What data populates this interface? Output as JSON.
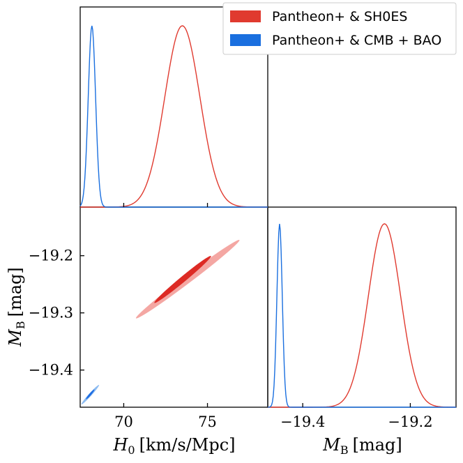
{
  "chart_data": {
    "type": "corner",
    "parameters": [
      {
        "symbol": "H",
        "subscript": "0",
        "unit": "[km/s/Mpc]",
        "range": [
          67.4,
          78.6
        ],
        "ticks": [
          70,
          75
        ],
        "tick_labels": [
          "70",
          "75"
        ]
      },
      {
        "symbol": "M",
        "subscript": "B",
        "unit": "[mag]",
        "range": [
          -19.465,
          -19.115
        ],
        "ticks": [
          -19.4,
          -19.3,
          -19.2
        ],
        "tick_labels": [
          "−19.4",
          "−19.3",
          "−19.2"
        ]
      }
    ],
    "x_range_mb": [
      -19.465,
      -19.115
    ],
    "x_ticks_mb": [
      -19.4,
      -19.2
    ],
    "x_tick_labels_mb": [
      "−19.4",
      "−19.2"
    ],
    "series": [
      {
        "name": "Pantheon+ & SH0ES",
        "color": "#e03a2f",
        "fill_inner": "#dd2a24",
        "fill_outer": "#f4a7a3",
        "H0": {
          "mean": 73.5,
          "sigma": 1.05
        },
        "MB": {
          "mean": -19.248,
          "sigma": 0.03
        },
        "ellipse_1sigma": {
          "corners": [
            [
              71.87,
              -19.288
            ],
            [
              75.25,
              -19.206
            ],
            [
              75.17,
              -19.195
            ],
            [
              71.79,
              -19.277
            ]
          ]
        },
        "ellipse_2sigma": {
          "corners": [
            [
              70.88,
              -19.315
            ],
            [
              77.06,
              -19.178
            ],
            [
              76.76,
              -19.167
            ],
            [
              70.78,
              -19.3
            ]
          ]
        }
      },
      {
        "name": "Pantheon+ & CMB + BAO",
        "color": "#1a6fdf",
        "fill_inner": "#1f6ee3",
        "fill_outer": "#8dbcf1",
        "H0": {
          "mean": 68.1,
          "sigma": 0.22
        },
        "MB": {
          "mean": -19.443,
          "sigma": 0.005
        },
        "ellipse_1sigma": {
          "corners": [
            [
              67.8,
              -19.452
            ],
            [
              68.3,
              -19.435
            ],
            [
              68.2,
              -19.433
            ],
            [
              67.7,
              -19.45
            ]
          ]
        },
        "ellipse_2sigma": {
          "corners": [
            [
              67.55,
              -19.462
            ],
            [
              68.6,
              -19.428
            ],
            [
              68.45,
              -19.424
            ],
            [
              67.45,
              -19.458
            ]
          ]
        }
      }
    ],
    "legend": {
      "position": "top-right",
      "entries": [
        "Pantheon+ & SH0ES",
        "Pantheon+ & CMB + BAO"
      ]
    }
  }
}
